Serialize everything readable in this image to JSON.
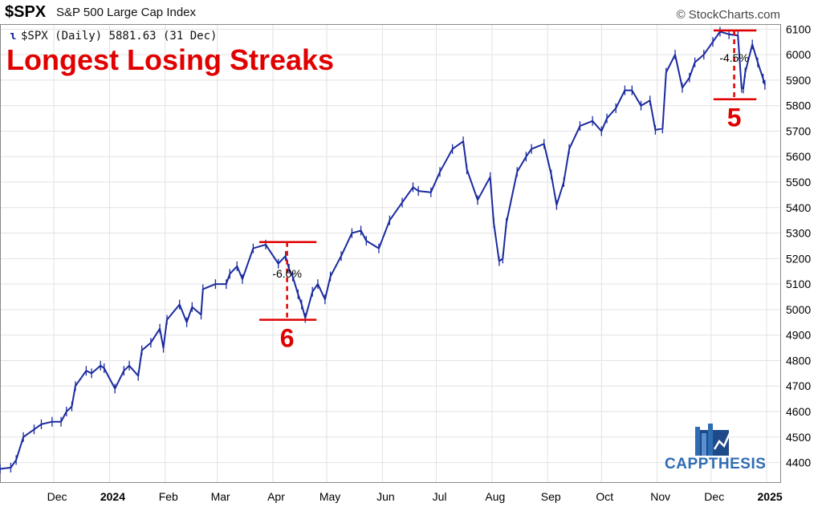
{
  "header": {
    "ticker": "$SPX",
    "name": "S&P 500 Large Cap Index",
    "credit": "© StockCharts.com"
  },
  "legend": {
    "icon": "ohlc-bar-icon",
    "text": "$SPX (Daily) 5881.63 (31 Dec)"
  },
  "brand": {
    "text": "CAPPTHESIS",
    "icon": "bar-chart-logo-icon"
  },
  "colors": {
    "price": "#1a2a9e",
    "annotation": "#e00000",
    "grid": "#e2e2e2",
    "brand": "#2f6db3"
  },
  "chart_data": {
    "type": "line",
    "title": "Longest Losing Streaks",
    "xlabel": "",
    "ylabel": "",
    "ylim": [
      4320,
      6120
    ],
    "y_ticks": [
      4400,
      4500,
      4600,
      4700,
      4800,
      4900,
      5000,
      5100,
      5200,
      5300,
      5400,
      5500,
      5600,
      5700,
      5800,
      5900,
      6000,
      6100
    ],
    "x_ticks": [
      {
        "label": "Dec",
        "x": "2023-12-01"
      },
      {
        "label": "2024",
        "x": "2024-01-01",
        "bold": true
      },
      {
        "label": "Feb",
        "x": "2024-02-01"
      },
      {
        "label": "Mar",
        "x": "2024-03-01"
      },
      {
        "label": "Apr",
        "x": "2024-04-01"
      },
      {
        "label": "May",
        "x": "2024-05-01"
      },
      {
        "label": "Jun",
        "x": "2024-06-01"
      },
      {
        "label": "Jul",
        "x": "2024-07-01"
      },
      {
        "label": "Aug",
        "x": "2024-08-01"
      },
      {
        "label": "Sep",
        "x": "2024-09-01"
      },
      {
        "label": "Oct",
        "x": "2024-10-01"
      },
      {
        "label": "Nov",
        "x": "2024-11-01"
      },
      {
        "label": "Dec",
        "x": "2024-12-01"
      },
      {
        "label": "2025",
        "x": "2025-01-01",
        "bold": true
      }
    ],
    "grid": true,
    "series": [
      {
        "values": [
          [
            "2023-11-01",
            4375
          ],
          [
            "2023-11-07",
            4380
          ],
          [
            "2023-11-10",
            4410
          ],
          [
            "2023-11-14",
            4500
          ],
          [
            "2023-11-20",
            4530
          ],
          [
            "2023-11-24",
            4550
          ],
          [
            "2023-11-30",
            4560
          ],
          [
            "2023-12-05",
            4560
          ],
          [
            "2023-12-08",
            4600
          ],
          [
            "2023-12-11",
            4620
          ],
          [
            "2023-12-13",
            4700
          ],
          [
            "2023-12-19",
            4760
          ],
          [
            "2023-12-22",
            4750
          ],
          [
            "2023-12-27",
            4780
          ],
          [
            "2023-12-29",
            4770
          ],
          [
            "2024-01-04",
            4690
          ],
          [
            "2024-01-09",
            4760
          ],
          [
            "2024-01-12",
            4780
          ],
          [
            "2024-01-17",
            4740
          ],
          [
            "2024-01-19",
            4840
          ],
          [
            "2024-01-24",
            4870
          ],
          [
            "2024-01-29",
            4925
          ],
          [
            "2024-01-31",
            4850
          ],
          [
            "2024-02-02",
            4960
          ],
          [
            "2024-02-09",
            5020
          ],
          [
            "2024-02-13",
            4950
          ],
          [
            "2024-02-16",
            5010
          ],
          [
            "2024-02-21",
            4980
          ],
          [
            "2024-02-22",
            5080
          ],
          [
            "2024-02-29",
            5100
          ],
          [
            "2024-03-06",
            5100
          ],
          [
            "2024-03-08",
            5140
          ],
          [
            "2024-03-12",
            5170
          ],
          [
            "2024-03-15",
            5120
          ],
          [
            "2024-03-21",
            5240
          ],
          [
            "2024-03-28",
            5255
          ],
          [
            "2024-04-04",
            5180
          ],
          [
            "2024-04-08",
            5210
          ],
          [
            "2024-04-10",
            5160
          ],
          [
            "2024-04-12",
            5130
          ],
          [
            "2024-04-15",
            5060
          ],
          [
            "2024-04-17",
            5020
          ],
          [
            "2024-04-19",
            4967
          ],
          [
            "2024-04-23",
            5070
          ],
          [
            "2024-04-26",
            5100
          ],
          [
            "2024-04-30",
            5040
          ],
          [
            "2024-05-03",
            5130
          ],
          [
            "2024-05-09",
            5210
          ],
          [
            "2024-05-15",
            5300
          ],
          [
            "2024-05-20",
            5310
          ],
          [
            "2024-05-23",
            5270
          ],
          [
            "2024-05-30",
            5240
          ],
          [
            "2024-06-05",
            5350
          ],
          [
            "2024-06-12",
            5420
          ],
          [
            "2024-06-18",
            5480
          ],
          [
            "2024-06-21",
            5465
          ],
          [
            "2024-06-28",
            5460
          ],
          [
            "2024-07-03",
            5540
          ],
          [
            "2024-07-10",
            5630
          ],
          [
            "2024-07-16",
            5660
          ],
          [
            "2024-07-18",
            5550
          ],
          [
            "2024-07-24",
            5430
          ],
          [
            "2024-07-31",
            5520
          ],
          [
            "2024-08-02",
            5340
          ],
          [
            "2024-08-05",
            5190
          ],
          [
            "2024-08-07",
            5200
          ],
          [
            "2024-08-09",
            5340
          ],
          [
            "2024-08-15",
            5540
          ],
          [
            "2024-08-20",
            5600
          ],
          [
            "2024-08-23",
            5630
          ],
          [
            "2024-08-30",
            5650
          ],
          [
            "2024-09-03",
            5530
          ],
          [
            "2024-09-06",
            5410
          ],
          [
            "2024-09-10",
            5500
          ],
          [
            "2024-09-13",
            5630
          ],
          [
            "2024-09-19",
            5720
          ],
          [
            "2024-09-26",
            5740
          ],
          [
            "2024-10-01",
            5700
          ],
          [
            "2024-10-04",
            5750
          ],
          [
            "2024-10-09",
            5790
          ],
          [
            "2024-10-14",
            5860
          ],
          [
            "2024-10-18",
            5860
          ],
          [
            "2024-10-23",
            5800
          ],
          [
            "2024-10-28",
            5820
          ],
          [
            "2024-10-31",
            5705
          ],
          [
            "2024-11-04",
            5710
          ],
          [
            "2024-11-06",
            5930
          ],
          [
            "2024-11-11",
            6000
          ],
          [
            "2024-11-15",
            5870
          ],
          [
            "2024-11-19",
            5910
          ],
          [
            "2024-11-22",
            5970
          ],
          [
            "2024-11-27",
            6000
          ],
          [
            "2024-12-02",
            6050
          ],
          [
            "2024-12-06",
            6090
          ],
          [
            "2024-12-11",
            6080
          ],
          [
            "2024-12-16",
            6075
          ],
          [
            "2024-12-18",
            5870
          ],
          [
            "2024-12-19",
            5867
          ],
          [
            "2024-12-20",
            5930
          ],
          [
            "2024-12-24",
            6040
          ],
          [
            "2024-12-27",
            5970
          ],
          [
            "2024-12-30",
            5906
          ],
          [
            "2024-12-31",
            5881.63
          ]
        ]
      }
    ],
    "annotations": [
      {
        "label": "-6.0%",
        "streak": "6",
        "high": 5265,
        "low": 4960,
        "from": "2024-03-28",
        "to": "2024-04-19"
      },
      {
        "label": "-4.5%",
        "streak": "5",
        "high": 6095,
        "low": 5825,
        "from": "2024-12-06",
        "to": "2024-12-20"
      }
    ]
  }
}
